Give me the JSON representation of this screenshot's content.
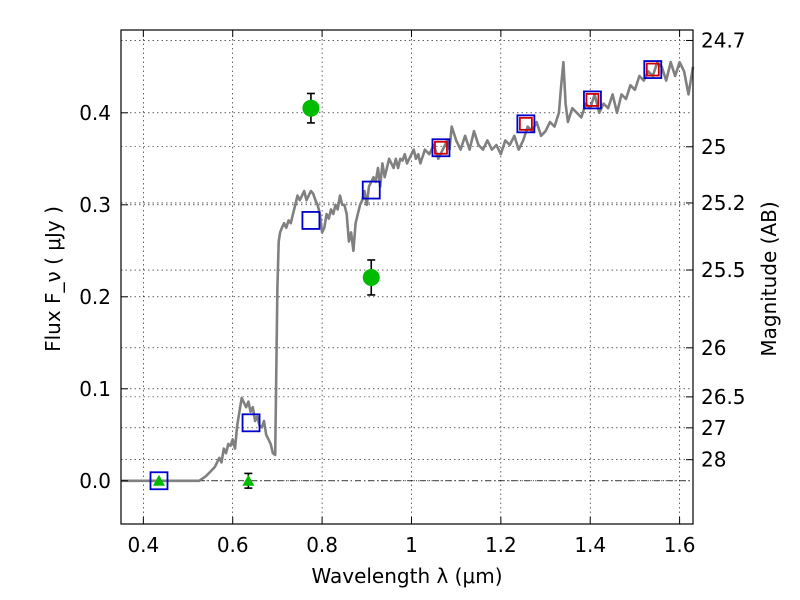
{
  "chart_data": {
    "type": "scatter",
    "xlabel": "Wavelength  λ (μm)",
    "ylabel": "Flux  F_ν  ( μJy )",
    "y2label": "Magnitude (AB)",
    "xlim": [
      0.35,
      1.63
    ],
    "ylim": [
      -0.047,
      0.49
    ],
    "grid": true,
    "x_ticks": [
      {
        "value": 0.4,
        "label": "0.4"
      },
      {
        "value": 0.6,
        "label": "0.6"
      },
      {
        "value": 0.8,
        "label": "0.8"
      },
      {
        "value": 1.0,
        "label": "1"
      },
      {
        "value": 1.2,
        "label": "1.2"
      },
      {
        "value": 1.4,
        "label": "1.4"
      },
      {
        "value": 1.6,
        "label": "1.6"
      }
    ],
    "y_ticks": [
      {
        "value": 0.0,
        "label": "0.0"
      },
      {
        "value": 0.1,
        "label": "0.1"
      },
      {
        "value": 0.2,
        "label": "0.2"
      },
      {
        "value": 0.3,
        "label": "0.3"
      },
      {
        "value": 0.4,
        "label": "0.4"
      }
    ],
    "magnitude_ticks": [
      {
        "value": 24.7,
        "label": "24.7"
      },
      {
        "value": 25.0,
        "label": "25"
      },
      {
        "value": 25.2,
        "label": "25.2"
      },
      {
        "value": 25.5,
        "label": "25.5"
      },
      {
        "value": 26.0,
        "label": "26"
      },
      {
        "value": 26.5,
        "label": "26.5"
      },
      {
        "value": 27.0,
        "label": "27"
      },
      {
        "value": 28.0,
        "label": "28"
      }
    ],
    "series": [
      {
        "kind": "model_spectrum",
        "color": "#808080",
        "x": [
          0.35,
          0.4,
          0.45,
          0.5,
          0.525,
          0.54,
          0.55,
          0.56,
          0.565,
          0.57,
          0.575,
          0.58,
          0.585,
          0.59,
          0.595,
          0.6,
          0.605,
          0.61,
          0.615,
          0.62,
          0.625,
          0.63,
          0.635,
          0.64,
          0.645,
          0.65,
          0.655,
          0.66,
          0.665,
          0.67,
          0.675,
          0.68,
          0.685,
          0.69,
          0.695,
          0.7,
          0.703,
          0.706,
          0.71,
          0.715,
          0.72,
          0.725,
          0.73,
          0.735,
          0.74,
          0.745,
          0.75,
          0.755,
          0.76,
          0.765,
          0.77,
          0.775,
          0.78,
          0.785,
          0.79,
          0.795,
          0.8,
          0.805,
          0.81,
          0.815,
          0.82,
          0.825,
          0.83,
          0.835,
          0.84,
          0.845,
          0.85,
          0.855,
          0.86,
          0.865,
          0.87,
          0.875,
          0.88,
          0.885,
          0.89,
          0.895,
          0.9,
          0.905,
          0.91,
          0.915,
          0.92,
          0.925,
          0.93,
          0.935,
          0.94,
          0.945,
          0.95,
          0.955,
          0.96,
          0.965,
          0.97,
          0.975,
          0.98,
          0.985,
          0.99,
          0.995,
          1.0,
          1.005,
          1.01,
          1.015,
          1.02,
          1.03,
          1.04,
          1.05,
          1.06,
          1.07,
          1.08,
          1.085,
          1.09,
          1.1,
          1.11,
          1.12,
          1.13,
          1.14,
          1.15,
          1.16,
          1.17,
          1.18,
          1.19,
          1.2,
          1.21,
          1.22,
          1.23,
          1.24,
          1.25,
          1.26,
          1.27,
          1.28,
          1.29,
          1.3,
          1.31,
          1.32,
          1.33,
          1.335,
          1.34,
          1.345,
          1.35,
          1.36,
          1.37,
          1.38,
          1.39,
          1.4,
          1.41,
          1.42,
          1.43,
          1.44,
          1.45,
          1.46,
          1.47,
          1.48,
          1.49,
          1.5,
          1.51,
          1.52,
          1.53,
          1.54,
          1.55,
          1.56,
          1.57,
          1.58,
          1.59,
          1.6,
          1.61,
          1.62,
          1.63
        ],
        "y": [
          0.0,
          0.0,
          0.0,
          0.0,
          0.0,
          0.005,
          0.01,
          0.015,
          0.02,
          0.025,
          0.02,
          0.035,
          0.03,
          0.04,
          0.038,
          0.045,
          0.035,
          0.06,
          0.075,
          0.09,
          0.085,
          0.08,
          0.086,
          0.075,
          0.08,
          0.065,
          0.07,
          0.06,
          0.058,
          0.065,
          0.05,
          0.045,
          0.04,
          0.03,
          0.028,
          0.21,
          0.26,
          0.27,
          0.275,
          0.28,
          0.275,
          0.283,
          0.28,
          0.29,
          0.3,
          0.31,
          0.305,
          0.31,
          0.315,
          0.305,
          0.31,
          0.315,
          0.312,
          0.305,
          0.3,
          0.29,
          0.27,
          0.275,
          0.29,
          0.285,
          0.295,
          0.29,
          0.3,
          0.295,
          0.31,
          0.3,
          0.3,
          0.29,
          0.26,
          0.27,
          0.25,
          0.28,
          0.29,
          0.3,
          0.305,
          0.315,
          0.3,
          0.32,
          0.325,
          0.33,
          0.325,
          0.34,
          0.32,
          0.345,
          0.33,
          0.34,
          0.35,
          0.345,
          0.34,
          0.35,
          0.34,
          0.35,
          0.348,
          0.355,
          0.345,
          0.35,
          0.355,
          0.36,
          0.35,
          0.355,
          0.345,
          0.36,
          0.355,
          0.365,
          0.35,
          0.36,
          0.37,
          0.36,
          0.385,
          0.37,
          0.36,
          0.375,
          0.36,
          0.38,
          0.365,
          0.36,
          0.37,
          0.36,
          0.365,
          0.355,
          0.37,
          0.365,
          0.375,
          0.36,
          0.37,
          0.385,
          0.38,
          0.39,
          0.375,
          0.38,
          0.39,
          0.385,
          0.4,
          0.43,
          0.455,
          0.41,
          0.39,
          0.405,
          0.4,
          0.395,
          0.41,
          0.405,
          0.42,
          0.4,
          0.41,
          0.405,
          0.42,
          0.4,
          0.42,
          0.415,
          0.43,
          0.425,
          0.44,
          0.435,
          0.445,
          0.44,
          0.455,
          0.45,
          0.435,
          0.455,
          0.44,
          0.455,
          0.445,
          0.42,
          0.45
        ]
      },
      {
        "kind": "model_photometry",
        "marker": "square",
        "color": "#0000cc",
        "x": [
          0.435,
          0.641,
          0.775,
          0.91,
          1.066,
          1.256,
          1.405,
          1.54
        ],
        "y": [
          0.0,
          0.063,
          0.283,
          0.316,
          0.362,
          0.388,
          0.414,
          0.447
        ]
      },
      {
        "kind": "observed_photometry",
        "marker": "square",
        "color": "#cc0000",
        "x": [
          1.066,
          1.256,
          1.405,
          1.54
        ],
        "y": [
          0.362,
          0.388,
          0.414,
          0.447
        ]
      },
      {
        "kind": "observed_photometry",
        "marker": "circle",
        "color": "#00bb00",
        "x": [
          0.775,
          0.91
        ],
        "y": [
          0.405,
          0.221
        ],
        "yerr": [
          0.016,
          0.019
        ]
      },
      {
        "kind": "upper_limit",
        "marker": "triangle",
        "color": "#00bb00",
        "x": [
          0.435,
          0.635
        ],
        "y": [
          0.0,
          0.0
        ],
        "yerr": [
          0.0,
          0.008
        ]
      }
    ]
  }
}
